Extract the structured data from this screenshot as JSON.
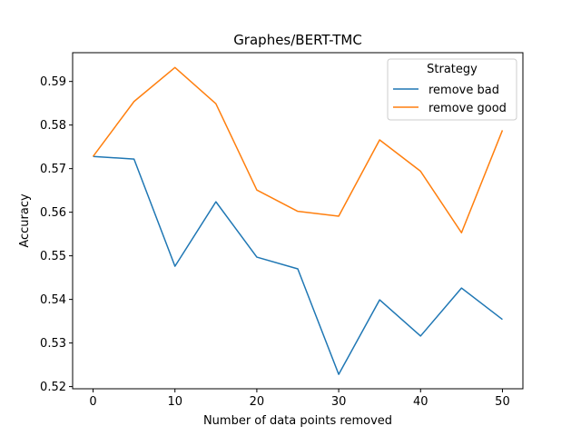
{
  "chart_data": {
    "type": "line",
    "title": "Graphes/BERT-TMC",
    "xlabel": "Number of data points removed",
    "ylabel": "Accuracy",
    "x": [
      0,
      5,
      10,
      15,
      20,
      25,
      30,
      35,
      40,
      45,
      50
    ],
    "xticks": [
      0,
      10,
      20,
      30,
      40,
      50
    ],
    "yticks": [
      0.52,
      0.53,
      0.54,
      0.55,
      0.56,
      0.57,
      0.58,
      0.59
    ],
    "xlim": [
      -2.5,
      52.5
    ],
    "ylim": [
      0.5195,
      0.5966
    ],
    "grid": false,
    "legend": {
      "title": "Strategy",
      "placement": "top-right"
    },
    "series": [
      {
        "name": "remove bad",
        "color": "#1f77b4",
        "values": [
          0.5728,
          0.5722,
          0.5476,
          0.5624,
          0.5497,
          0.547,
          0.5228,
          0.5399,
          0.5316,
          0.5426,
          0.5354
        ]
      },
      {
        "name": "remove good",
        "color": "#ff7f0e",
        "values": [
          0.5728,
          0.5854,
          0.5932,
          0.5849,
          0.5651,
          0.5602,
          0.5591,
          0.5766,
          0.5694,
          0.5553,
          0.5788
        ]
      }
    ]
  }
}
